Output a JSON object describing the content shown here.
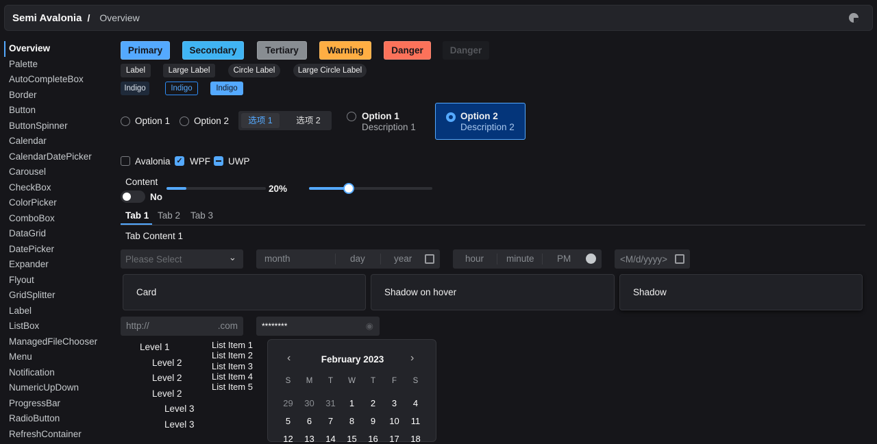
{
  "header": {
    "title": "Semi Avalonia",
    "separator": "/",
    "page": "Overview",
    "theme_icon": "theme-toggle-icon"
  },
  "sidebar": {
    "items": [
      "Overview",
      "Palette",
      "AutoCompleteBox",
      "Border",
      "Button",
      "ButtonSpinner",
      "Calendar",
      "CalendarDatePicker",
      "Carousel",
      "CheckBox",
      "ColorPicker",
      "ComboBox",
      "DataGrid",
      "DatePicker",
      "Expander",
      "Flyout",
      "GridSplitter",
      "Label",
      "ListBox",
      "ManagedFileChooser",
      "Menu",
      "Notification",
      "NumericUpDown",
      "ProgressBar",
      "RadioButton",
      "RefreshContainer"
    ],
    "active": "Overview"
  },
  "buttons": [
    {
      "label": "Primary",
      "color": "#54a9ff"
    },
    {
      "label": "Secondary",
      "color": "#40b4f3"
    },
    {
      "label": "Tertiary",
      "color": "#888d92"
    },
    {
      "label": "Warning",
      "color": "#ffae43"
    },
    {
      "label": "Danger",
      "color": "#fc725a"
    },
    {
      "label": "Danger",
      "color": "#1c1d21",
      "disabled": true
    }
  ],
  "labels": [
    "Label",
    "Large Label",
    "Circle Label",
    "Large Circle Label"
  ],
  "indigo": [
    "Indigo",
    "Indigo",
    "Indigo"
  ],
  "radios": [
    "Option 1",
    "Option 2"
  ],
  "segmented": [
    "选项 1",
    "选项 2"
  ],
  "radio_cards": [
    {
      "title": "Option 1",
      "desc": "Description 1"
    },
    {
      "title": "Option 2",
      "desc": "Description 2",
      "selected": true
    }
  ],
  "checkboxes": [
    {
      "label": "Avalonia",
      "state": "unchecked"
    },
    {
      "label": "WPF",
      "state": "checked"
    },
    {
      "label": "UWP",
      "state": "indeterminate"
    }
  ],
  "toggle": {
    "header": "Content",
    "state": "No"
  },
  "progress": {
    "value": 20,
    "text": "20%"
  },
  "slider": {
    "value": 32
  },
  "tabs": {
    "items": [
      "Tab 1",
      "Tab 2",
      "Tab 3"
    ],
    "content": "Tab Content 1"
  },
  "combo": {
    "placeholder": "Please Select"
  },
  "date": {
    "month": "month",
    "day": "day",
    "year": "year"
  },
  "time": {
    "hour": "hour",
    "minute": "minute",
    "ampm": "PM"
  },
  "calendar_date": {
    "placeholder": "<M/d/yyyy>"
  },
  "cards": [
    "Card",
    "Shadow on hover",
    "Shadow"
  ],
  "url": {
    "prefix": "http://",
    "suffix": ".com"
  },
  "password": {
    "value": "********"
  },
  "tree": [
    "Level 1",
    "Level 2",
    "Level 2",
    "Level 2",
    "Level 3",
    "Level 3"
  ],
  "list": [
    "List Item 1",
    "List Item 2",
    "List Item 3",
    "List Item 4",
    "List Item 5"
  ],
  "calendar": {
    "title": "February 2023",
    "weekdays": [
      "S",
      "M",
      "T",
      "W",
      "T",
      "F",
      "S"
    ],
    "rows": [
      [
        "29",
        "30",
        "31",
        "1",
        "2",
        "3",
        "4"
      ],
      [
        "5",
        "6",
        "7",
        "8",
        "9",
        "10",
        "11"
      ],
      [
        "12",
        "13",
        "14",
        "15",
        "16",
        "17",
        "18"
      ]
    ]
  }
}
